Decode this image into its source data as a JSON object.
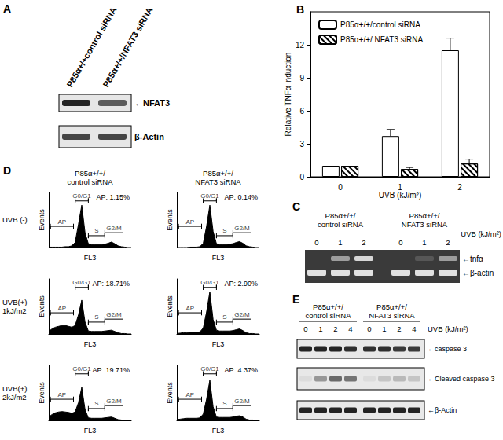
{
  "chart_data": [
    {
      "type": "bar",
      "title": "B",
      "categories": [
        "0",
        "1",
        "2"
      ],
      "xlabel": "UVB (kJ/m²)",
      "ylabel": "Relative TNFα induction",
      "ylim": [
        0,
        15
      ],
      "yticks": [
        0,
        3,
        6,
        9,
        12
      ],
      "grid": false,
      "legend": "upper left",
      "series": [
        {
          "name": "P85α+/+/control siRNA",
          "color": "#ffffff",
          "values": [
            1,
            3.7,
            11.5
          ],
          "errors": [
            0,
            0.6,
            1.1
          ]
        },
        {
          "name": "P85α+/+/ NFAT3 siRNA",
          "color": "#ffffff",
          "values": [
            1,
            0.7,
            1.2
          ],
          "errors": [
            0,
            0.15,
            0.4
          ]
        }
      ]
    },
    {
      "type": "area",
      "xlabel": "FL3",
      "ylabel": "Events",
      "xlim": [
        0,
        100
      ],
      "ylim": [
        0,
        130
      ],
      "tick_labels": false,
      "color": "#000000",
      "x": [
        0,
        4,
        8,
        12,
        16,
        20,
        24,
        28,
        32,
        36,
        40,
        44,
        48,
        52,
        56,
        60,
        64,
        68,
        72,
        76,
        80,
        84,
        88,
        92,
        96,
        100
      ],
      "values": [
        1,
        1,
        1,
        1,
        1,
        2,
        2,
        4,
        12,
        55,
        100,
        35,
        9,
        7,
        7,
        7,
        7,
        8,
        10,
        13,
        9,
        4,
        2,
        1,
        0,
        0
      ],
      "gates": [
        {
          "label": "AP",
          "range": [
            2,
            30
          ]
        },
        {
          "label": "G0/G1",
          "range": [
            32,
            48
          ]
        },
        {
          "label": "S",
          "range": [
            48,
            68
          ]
        },
        {
          "label": "G2/M",
          "range": [
            68,
            90
          ]
        }
      ],
      "annotation": "AP: 1.15%"
    },
    {
      "type": "area",
      "xlabel": "FL3",
      "ylabel": "Events",
      "xlim": [
        0,
        100
      ],
      "ylim": [
        0,
        130
      ],
      "tick_labels": false,
      "color": "#000000",
      "x": [
        0,
        4,
        8,
        12,
        16,
        20,
        24,
        28,
        32,
        36,
        40,
        44,
        48,
        52,
        56,
        60,
        64,
        68,
        72,
        76,
        80,
        84,
        88,
        92,
        96,
        100
      ],
      "values": [
        0,
        0,
        0,
        0,
        1,
        1,
        1,
        2,
        10,
        50,
        100,
        38,
        9,
        7,
        7,
        7,
        8,
        9,
        12,
        14,
        10,
        4,
        2,
        1,
        0,
        0
      ],
      "gates": [
        {
          "label": "AP",
          "range": [
            2,
            30
          ]
        },
        {
          "label": "G0/G1",
          "range": [
            32,
            48
          ]
        },
        {
          "label": "S",
          "range": [
            48,
            68
          ]
        },
        {
          "label": "G2/M",
          "range": [
            68,
            90
          ]
        }
      ],
      "annotation": "AP: 0.14%"
    },
    {
      "type": "area",
      "xlabel": "FL3",
      "ylabel": "Events",
      "xlim": [
        0,
        100
      ],
      "ylim": [
        0,
        130
      ],
      "tick_labels": false,
      "color": "#000000",
      "x": [
        0,
        4,
        8,
        12,
        16,
        20,
        24,
        28,
        32,
        36,
        40,
        44,
        48,
        52,
        56,
        60,
        64,
        68,
        72,
        76,
        80,
        84,
        88,
        92,
        96,
        100
      ],
      "values": [
        6,
        12,
        16,
        18,
        20,
        20,
        18,
        16,
        20,
        45,
        80,
        28,
        7,
        6,
        6,
        6,
        6,
        7,
        8,
        9,
        6,
        3,
        1,
        1,
        0,
        0
      ],
      "gates": [
        {
          "label": "AP",
          "range": [
            2,
            30
          ]
        },
        {
          "label": "G0/G1",
          "range": [
            32,
            48
          ]
        },
        {
          "label": "S",
          "range": [
            48,
            68
          ]
        },
        {
          "label": "G2/M",
          "range": [
            68,
            90
          ]
        }
      ],
      "annotation": "AP: 18.71%"
    },
    {
      "type": "area",
      "xlabel": "FL3",
      "ylabel": "Events",
      "xlim": [
        0,
        100
      ],
      "ylim": [
        0,
        130
      ],
      "tick_labels": false,
      "color": "#000000",
      "x": [
        0,
        4,
        8,
        12,
        16,
        20,
        24,
        28,
        32,
        36,
        40,
        44,
        48,
        52,
        56,
        60,
        64,
        68,
        72,
        76,
        80,
        84,
        88,
        92,
        96,
        100
      ],
      "values": [
        1,
        2,
        3,
        3,
        4,
        4,
        4,
        5,
        14,
        52,
        100,
        34,
        9,
        7,
        7,
        7,
        7,
        8,
        10,
        12,
        8,
        3,
        1,
        1,
        0,
        0
      ],
      "gates": [
        {
          "label": "AP",
          "range": [
            2,
            30
          ]
        },
        {
          "label": "G0/G1",
          "range": [
            32,
            48
          ]
        },
        {
          "label": "S",
          "range": [
            48,
            68
          ]
        },
        {
          "label": "G2/M",
          "range": [
            68,
            90
          ]
        }
      ],
      "annotation": "AP: 2.90%"
    },
    {
      "type": "area",
      "xlabel": "FL3",
      "ylabel": "Events",
      "xlim": [
        0,
        100
      ],
      "ylim": [
        0,
        130
      ],
      "tick_labels": false,
      "color": "#000000",
      "x": [
        0,
        4,
        8,
        12,
        16,
        20,
        24,
        28,
        32,
        36,
        40,
        44,
        48,
        52,
        56,
        60,
        64,
        68,
        72,
        76,
        80,
        84,
        88,
        92,
        96,
        100
      ],
      "values": [
        8,
        14,
        18,
        20,
        21,
        20,
        19,
        17,
        20,
        42,
        78,
        26,
        6,
        5,
        5,
        5,
        5,
        6,
        7,
        8,
        5,
        2,
        1,
        0,
        0,
        0
      ],
      "gates": [
        {
          "label": "AP",
          "range": [
            2,
            30
          ]
        },
        {
          "label": "G0/G1",
          "range": [
            32,
            48
          ]
        },
        {
          "label": "S",
          "range": [
            48,
            68
          ]
        },
        {
          "label": "G2/M",
          "range": [
            68,
            90
          ]
        }
      ],
      "annotation": "AP: 19.71%"
    },
    {
      "type": "area",
      "xlabel": "FL3",
      "ylabel": "Events",
      "xlim": [
        0,
        100
      ],
      "ylim": [
        0,
        130
      ],
      "tick_labels": false,
      "color": "#000000",
      "x": [
        0,
        4,
        8,
        12,
        16,
        20,
        24,
        28,
        32,
        36,
        40,
        44,
        48,
        52,
        56,
        60,
        64,
        68,
        72,
        76,
        80,
        84,
        88,
        92,
        96,
        100
      ],
      "values": [
        2,
        3,
        4,
        5,
        5,
        5,
        5,
        6,
        15,
        50,
        95,
        32,
        8,
        7,
        7,
        7,
        7,
        8,
        10,
        11,
        8,
        3,
        1,
        1,
        0,
        0
      ],
      "gates": [
        {
          "label": "AP",
          "range": [
            2,
            30
          ]
        },
        {
          "label": "G0/G1",
          "range": [
            32,
            48
          ]
        },
        {
          "label": "S",
          "range": [
            48,
            68
          ]
        },
        {
          "label": "G2/M",
          "range": [
            68,
            90
          ]
        }
      ],
      "annotation": "AP: 4.37%"
    }
  ],
  "panel_A": {
    "label": "A",
    "columns": [
      "P85α+/+control siRNA",
      "P85α+/+/NFAT3 siRNA"
    ],
    "bands": [
      {
        "label": "←NFAT3",
        "intensity": [
          0.85,
          0.6
        ]
      },
      {
        "label": "β-Actin",
        "intensity": [
          0.7,
          0.7
        ]
      }
    ]
  },
  "panel_C": {
    "label": "C",
    "groups": [
      [
        "P85α+/+/",
        "control siRNA"
      ],
      [
        "P85α+/+/",
        "NFAT3 siRNA"
      ]
    ],
    "lane_label": "UVB (kJ/m²)",
    "lanes": [
      "0",
      "1",
      "2",
      "0",
      "1",
      "2"
    ],
    "bands": [
      {
        "label": "←tnfα",
        "intensity": [
          0,
          0.5,
          0.8,
          0,
          0.15,
          0.5
        ]
      },
      {
        "label": "←β-actin",
        "intensity": [
          0.85,
          0.85,
          0.85,
          0.85,
          0.85,
          0.85
        ]
      }
    ]
  },
  "panel_D": {
    "label": "D",
    "columns": [
      [
        "P85α+/+/",
        "control siRNA"
      ],
      [
        "P85α+/+/",
        "NFAT3 siRNA"
      ]
    ],
    "rows": [
      [
        "UVB (-)"
      ],
      [
        "UVB(+)",
        "1kJ/m2"
      ],
      [
        "UVB(+)",
        "2kJ/m2"
      ]
    ]
  },
  "panel_E": {
    "label": "E",
    "groups": [
      [
        "P85α+/+/",
        "control siRNA"
      ],
      [
        "P85α+/+/",
        "NFAT3 siRNA"
      ]
    ],
    "lane_label": "UVB (kJ/m²)",
    "lanes": [
      "0",
      "1",
      "2",
      "4",
      "0",
      "1",
      "2",
      "4"
    ],
    "bands": [
      {
        "label": "←caspase 3",
        "intensity": [
          0.85,
          0.85,
          0.85,
          0.8,
          0.8,
          0.8,
          0.75,
          0.75
        ]
      },
      {
        "label": "←Cleaved caspase 3",
        "intensity": [
          0.05,
          0.35,
          0.55,
          0.5,
          0.05,
          0.15,
          0.2,
          0.15
        ]
      },
      {
        "label": "←β-Actin",
        "intensity": [
          0.85,
          0.85,
          0.85,
          0.85,
          0.85,
          0.85,
          0.85,
          0.85
        ]
      }
    ]
  }
}
